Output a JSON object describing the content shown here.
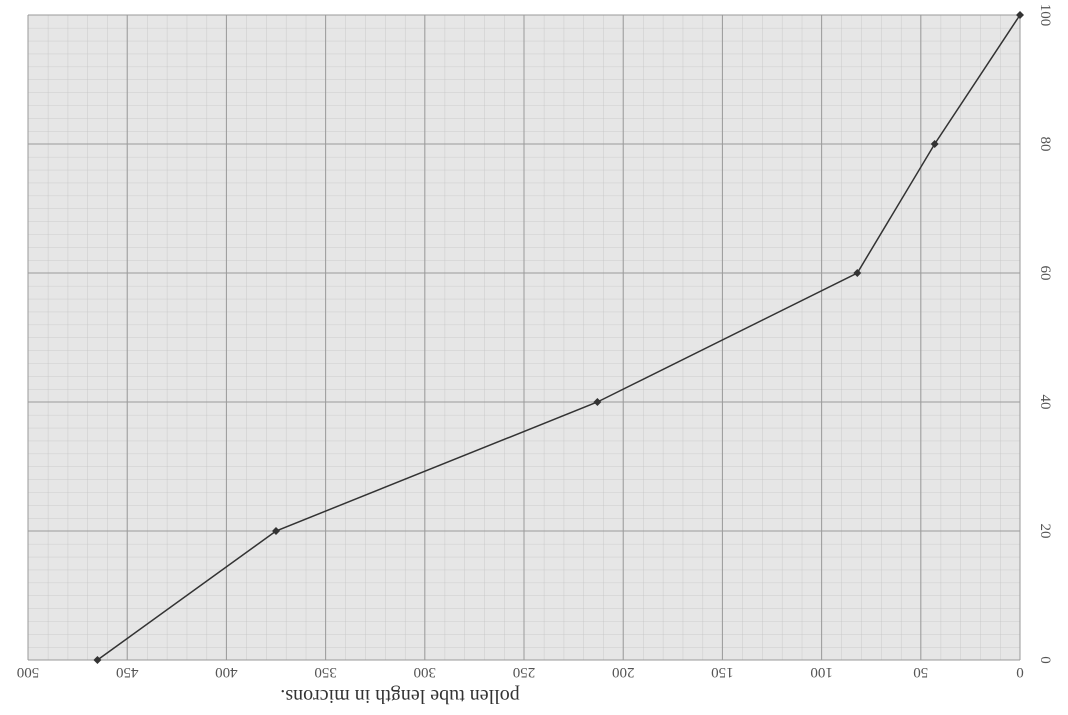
{
  "chart_data": {
    "type": "line",
    "x_label": "pollen tube length in microns.",
    "x": [
      465,
      375,
      213,
      82,
      43,
      0
    ],
    "series": [
      {
        "color": "#333333",
        "values": [
          0,
          20,
          40,
          60,
          80,
          100
        ]
      }
    ],
    "xlim": [
      500,
      0
    ],
    "xticks": [
      500,
      450,
      400,
      350,
      300,
      250,
      200,
      150,
      100,
      50,
      0
    ],
    "ylim": [
      0,
      100
    ],
    "yticks": [
      0,
      20,
      40,
      60,
      80,
      100
    ],
    "grid": true
  }
}
